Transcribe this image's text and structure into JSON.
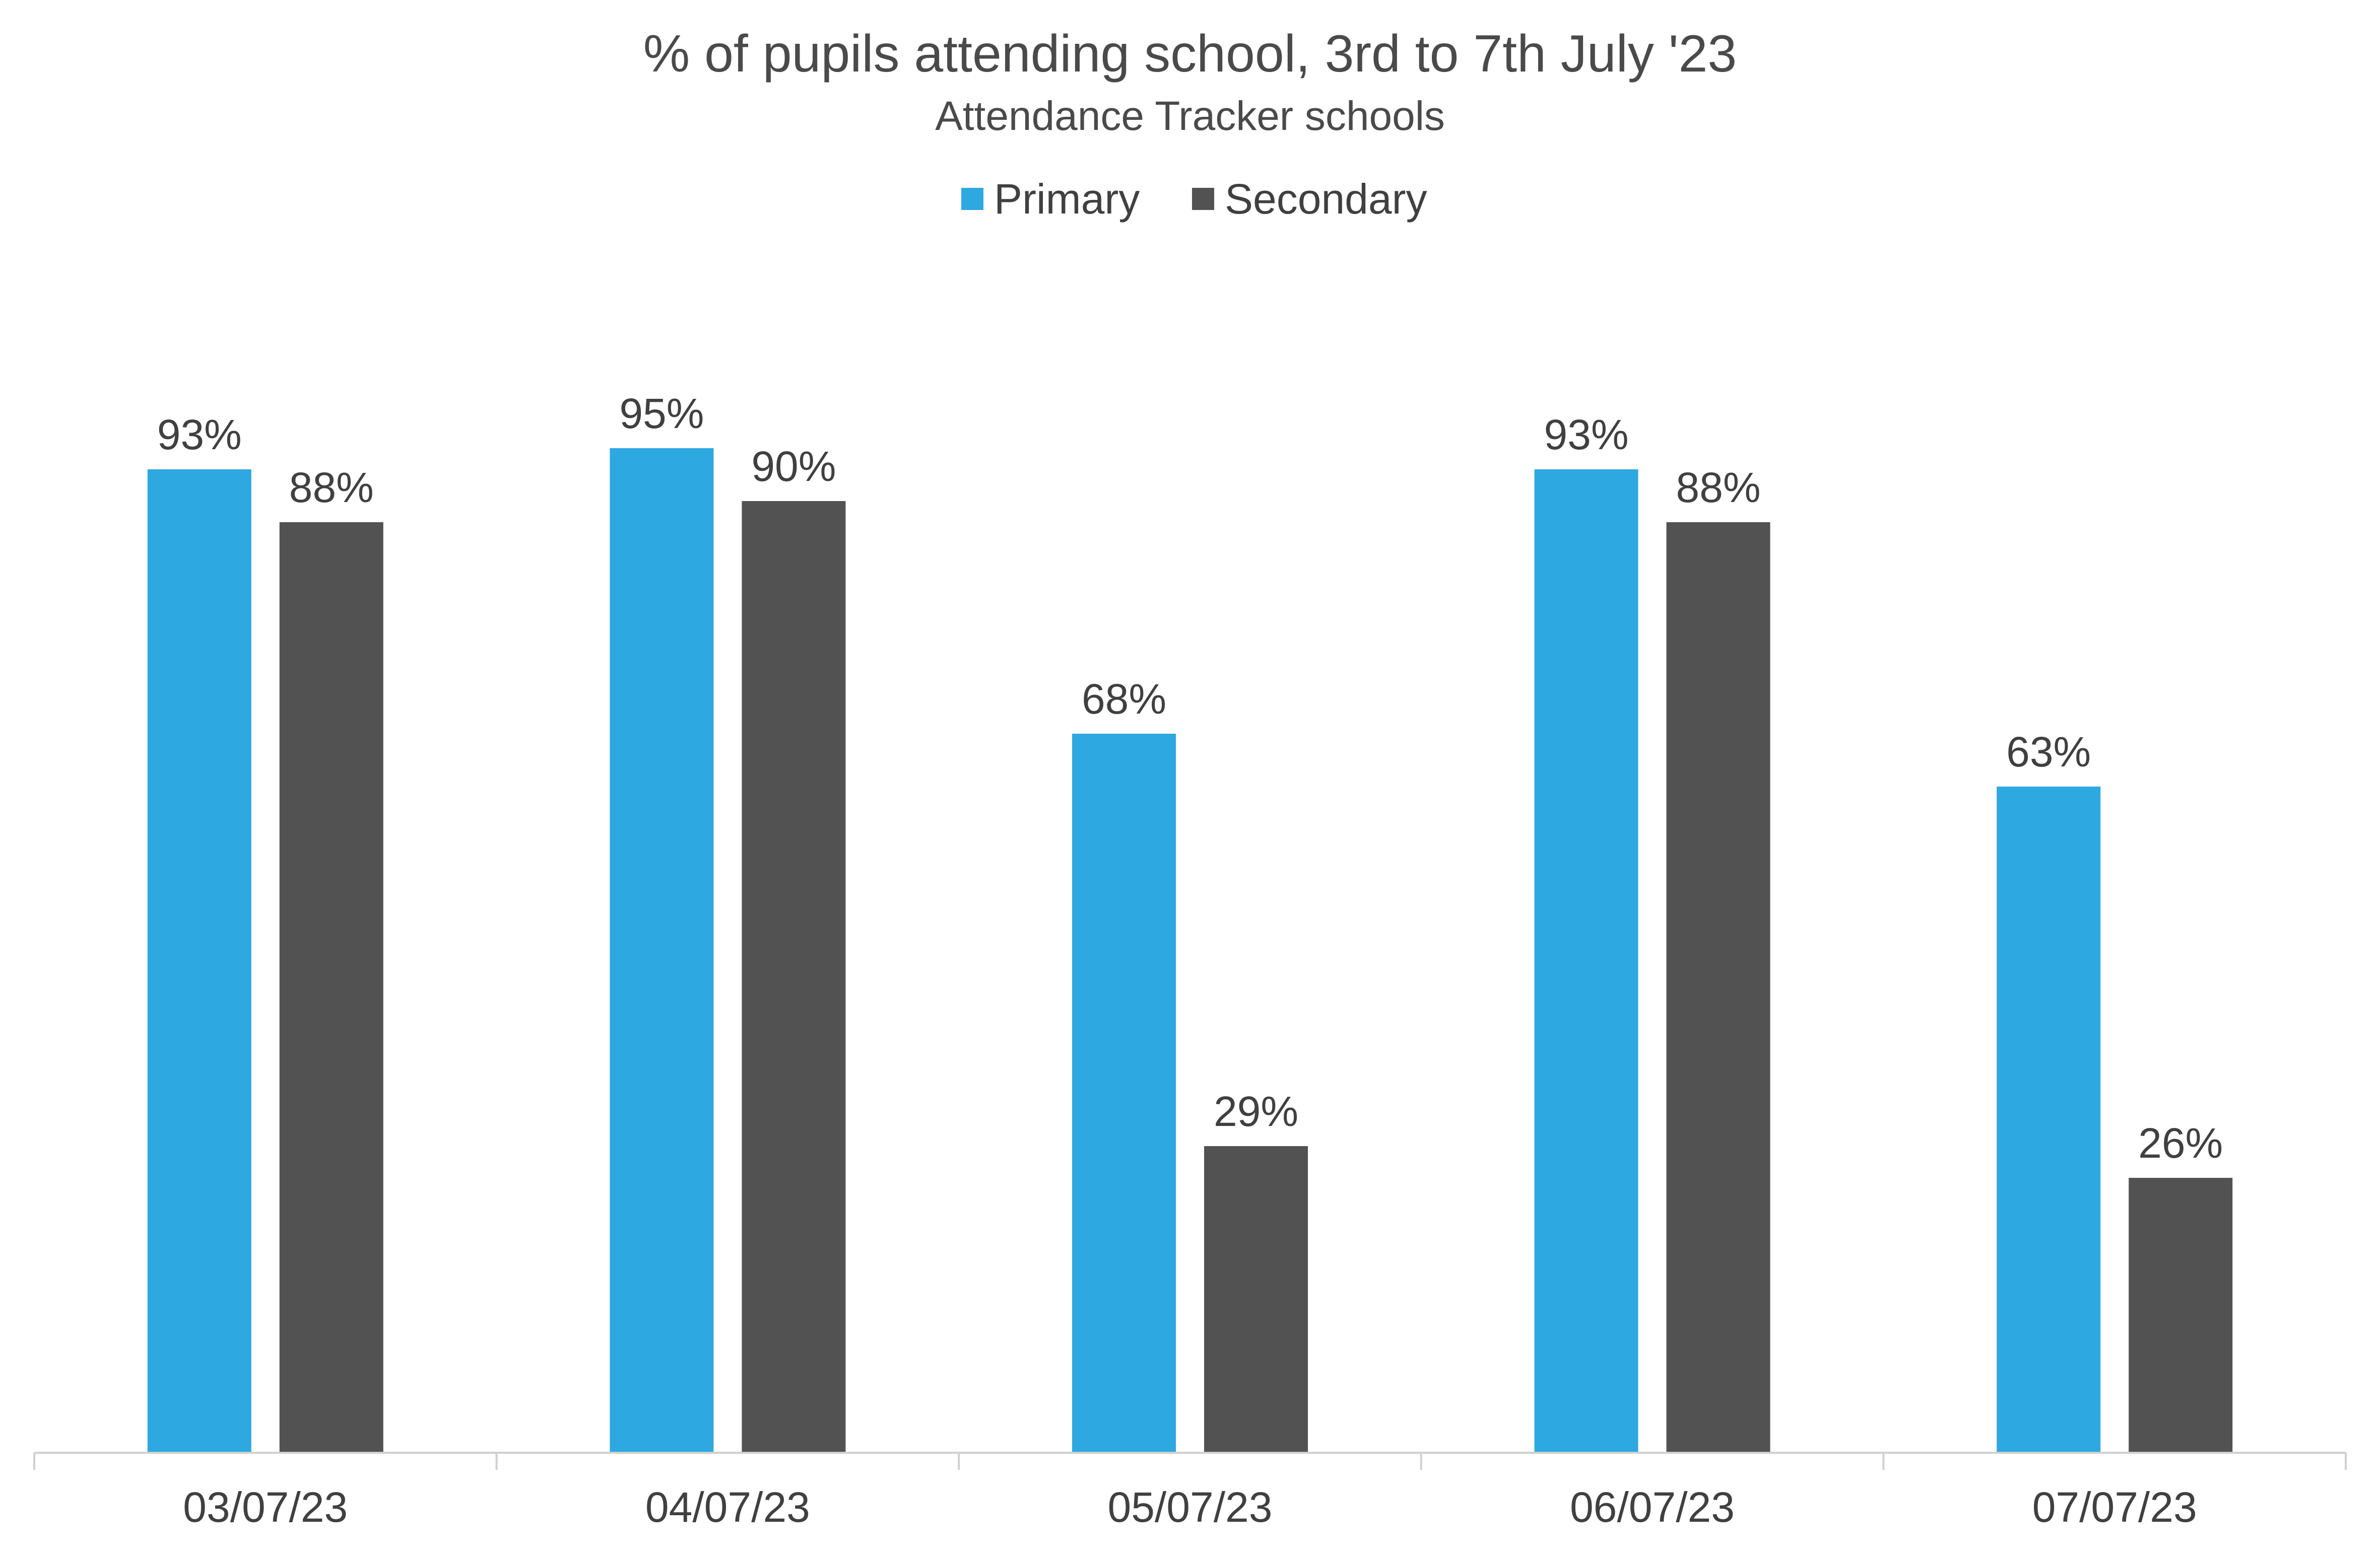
{
  "chart_data": {
    "type": "bar",
    "title": "% of pupils attending school, 3rd to 7th July '23",
    "subtitle": "Attendance Tracker schools",
    "categories": [
      "03/07/23",
      "04/07/23",
      "05/07/23",
      "06/07/23",
      "07/07/23"
    ],
    "series": [
      {
        "name": "Primary",
        "color": "#2ea8e0",
        "values": [
          93,
          95,
          68,
          93,
          63
        ],
        "labels": [
          "93%",
          "95%",
          "68%",
          "93%",
          "63%"
        ]
      },
      {
        "name": "Secondary",
        "color": "#525252",
        "values": [
          88,
          90,
          29,
          88,
          26
        ],
        "labels": [
          "88%",
          "90%",
          "29%",
          "88%",
          "26%"
        ]
      }
    ],
    "ylim": [
      0,
      100
    ],
    "grid": false,
    "legend_position": "top-center",
    "axis_color": "#d0d0d0"
  }
}
